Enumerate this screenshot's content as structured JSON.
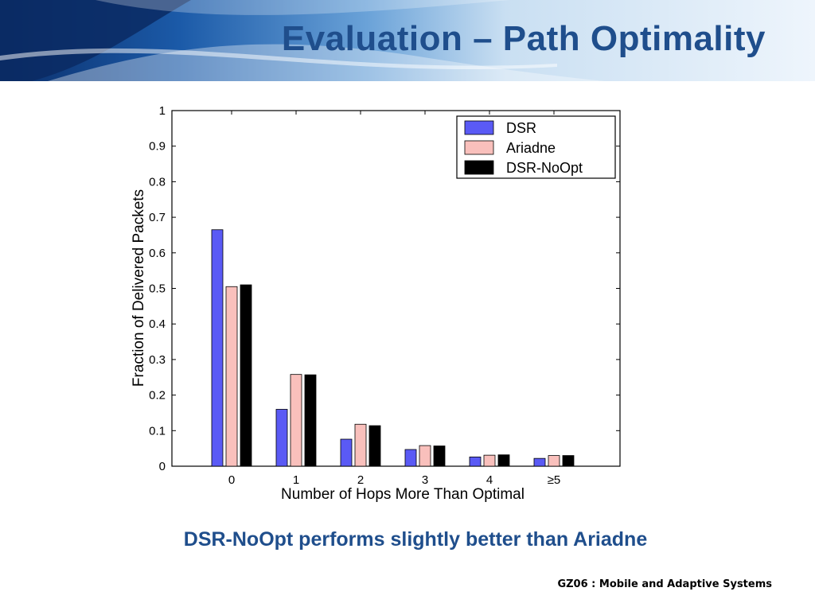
{
  "slide": {
    "title": "Evaluation – Path Optimality",
    "caption": "DSR-NoOpt performs slightly better than Ariadne",
    "footer": "GZ06 : Mobile and Adaptive Systems"
  },
  "colors": {
    "title": "#1f4e8c",
    "dsr": "#5a5af5",
    "ariadne": "#f9c0bc",
    "noopt": "#000000"
  },
  "chart_data": {
    "type": "bar",
    "xlabel": "Number of Hops More Than Optimal",
    "ylabel": "Fraction of Delivered Packets",
    "categories": [
      "0",
      "1",
      "2",
      "3",
      "4",
      "≥5"
    ],
    "ylim": [
      0,
      1
    ],
    "yticks": [
      "0",
      "0.1",
      "0.2",
      "0.3",
      "0.4",
      "0.5",
      "0.6",
      "0.7",
      "0.8",
      "0.9",
      "1"
    ],
    "legend_position": "top-right",
    "grid": false,
    "series": [
      {
        "name": "DSR",
        "color": "#5a5af5",
        "values": [
          0.665,
          0.16,
          0.076,
          0.047,
          0.026,
          0.022
        ]
      },
      {
        "name": "Ariadne",
        "color": "#f9c0bc",
        "values": [
          0.505,
          0.258,
          0.118,
          0.058,
          0.031,
          0.03
        ]
      },
      {
        "name": "DSR-NoOpt",
        "color": "#000000",
        "values": [
          0.51,
          0.257,
          0.114,
          0.057,
          0.032,
          0.03
        ]
      }
    ]
  }
}
